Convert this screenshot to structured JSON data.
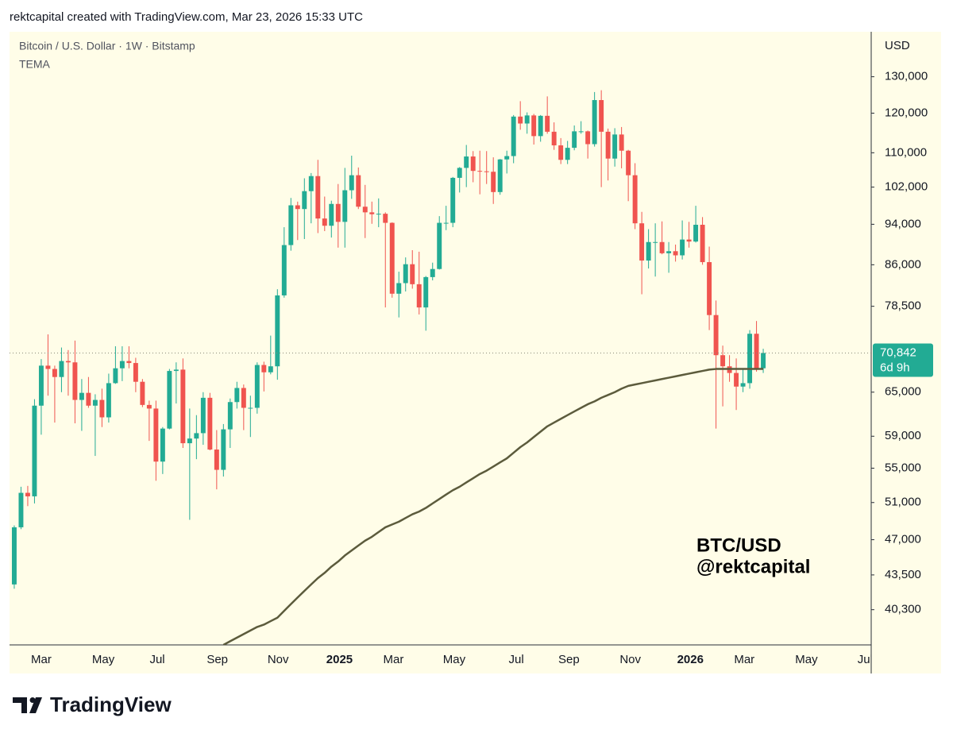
{
  "header": {
    "caption": "rektcapital created with TradingView.com, Mar 23, 2026 15:33 UTC"
  },
  "chart_data": {
    "type": "candlestick",
    "title": "Bitcoin / U.S. Dollar · 1W · Bitstamp",
    "currency": "USD",
    "log_scale": true,
    "up_color": "#22ab94",
    "down_color": "#f0544f",
    "categories": [
      null,
      null,
      null,
      null,
      null,
      null,
      null,
      null,
      null,
      null,
      null,
      null,
      null,
      null,
      null,
      null,
      null,
      null,
      null,
      null,
      null,
      null,
      null,
      null,
      null,
      null,
      null,
      null,
      null,
      null,
      null,
      null,
      null,
      null,
      null,
      null,
      null,
      null,
      null,
      null,
      null,
      null,
      null,
      null,
      null,
      null,
      null,
      null,
      null,
      null,
      null,
      null,
      null,
      null,
      null,
      null,
      null,
      null,
      null,
      null,
      null,
      null,
      null,
      null,
      null,
      null,
      null,
      null,
      null,
      null,
      null,
      null,
      null,
      null,
      null,
      null,
      null,
      null,
      null,
      null,
      null,
      null,
      null,
      null,
      null,
      null,
      null,
      null,
      null,
      null,
      null,
      null,
      null,
      null,
      null,
      null,
      null,
      null,
      null,
      null,
      null,
      null,
      null,
      null,
      null,
      null,
      null,
      null,
      null,
      null,
      null,
      null
    ],
    "open": [
      42600,
      48300,
      52100,
      51700,
      63100,
      68900,
      68400,
      67200,
      69600,
      69400,
      63900,
      64900,
      63100,
      63900,
      61500,
      66300,
      68500,
      69600,
      69300,
      66500,
      63200,
      62700,
      55800,
      60000,
      68100,
      68300,
      58100,
      58700,
      59400,
      64200,
      57300,
      54800,
      59900,
      63600,
      65600,
      62800,
      62800,
      69000,
      67900,
      68800,
      80400,
      89800,
      98000,
      97200,
      101100,
      104500,
      95200,
      93700,
      98300,
      94500,
      101300,
      104700,
      97700,
      96500,
      96100,
      96200,
      94300,
      80700,
      82600,
      86100,
      82400,
      78300,
      83700,
      85200,
      94300,
      94300,
      104100,
      106400,
      109100,
      105700,
      105600,
      105500,
      100900,
      108400,
      109200,
      119100,
      117300,
      119400,
      114100,
      119300,
      115200,
      111800,
      108300,
      111200,
      115300,
      115300,
      112100,
      123500,
      115200,
      108600,
      114500,
      110500,
      104700,
      94200,
      86800,
      90400,
      90400,
      88200,
      88600,
      87800,
      90900,
      90500,
      93900,
      86500,
      77000,
      70500,
      68800,
      67800,
      65800,
      66300,
      73900,
      68500
    ],
    "high": [
      48500,
      52800,
      52900,
      64000,
      69900,
      73800,
      68900,
      71700,
      71300,
      72800,
      66900,
      67200,
      64700,
      65500,
      67700,
      71900,
      71900,
      71900,
      70100,
      66900,
      63800,
      63800,
      60200,
      68400,
      69400,
      70000,
      62700,
      61800,
      65000,
      64900,
      59800,
      60600,
      64100,
      66500,
      66100,
      64500,
      69400,
      69500,
      73600,
      81500,
      93400,
      99600,
      98800,
      104000,
      105200,
      108300,
      99900,
      99000,
      102700,
      106400,
      109300,
      106500,
      102500,
      98800,
      99500,
      96500,
      94400,
      84700,
      87400,
      88800,
      88500,
      83900,
      86400,
      95700,
      97900,
      104300,
      106600,
      111900,
      110400,
      110500,
      110400,
      108900,
      108500,
      110500,
      119500,
      123200,
      120200,
      119800,
      119500,
      124500,
      117600,
      113600,
      112900,
      116800,
      117900,
      115500,
      125700,
      126200,
      116000,
      116100,
      116400,
      110700,
      107500,
      96600,
      93000,
      94200,
      94600,
      90400,
      89900,
      94800,
      94500,
      97900,
      95500,
      89500,
      79500,
      72000,
      70500,
      70000,
      68500,
      74500,
      76000,
      71500
    ],
    "low": [
      42200,
      48100,
      50600,
      50900,
      59200,
      64500,
      60800,
      65000,
      64500,
      60700,
      59700,
      62800,
      56500,
      60200,
      60800,
      66200,
      66600,
      68500,
      65000,
      62900,
      58400,
      53500,
      54300,
      59900,
      63400,
      57500,
      49100,
      56100,
      57900,
      57200,
      52500,
      54000,
      57500,
      62700,
      59800,
      58900,
      62000,
      65100,
      67600,
      66800,
      80000,
      88700,
      90800,
      91000,
      94200,
      92200,
      92600,
      91300,
      89300,
      89300,
      99400,
      97200,
      91200,
      94100,
      93400,
      78300,
      80000,
      76600,
      81100,
      81600,
      77100,
      74400,
      83100,
      85100,
      92800,
      93400,
      100800,
      102000,
      103100,
      100400,
      102700,
      98300,
      100300,
      105100,
      107500,
      115700,
      114700,
      112000,
      112700,
      114700,
      110700,
      107300,
      107300,
      110600,
      114700,
      108600,
      111500,
      102000,
      103500,
      106700,
      106300,
      98900,
      93000,
      80600,
      85300,
      83800,
      88000,
      84500,
      86600,
      87000,
      89300,
      90300,
      86000,
      74500,
      60000,
      63000,
      66500,
      62500,
      65000,
      65500,
      68000,
      67800
    ],
    "close": [
      48300,
      52100,
      51700,
      63100,
      68900,
      68400,
      67200,
      69600,
      69400,
      63900,
      64900,
      63100,
      63900,
      61500,
      66300,
      68500,
      69600,
      69300,
      66500,
      63200,
      62700,
      55800,
      60000,
      68100,
      68300,
      58100,
      58700,
      59400,
      64200,
      57300,
      54800,
      59900,
      63600,
      65600,
      62800,
      62800,
      69000,
      67900,
      68800,
      80400,
      89800,
      98000,
      97200,
      101100,
      104500,
      95200,
      93700,
      98300,
      94500,
      101300,
      104700,
      97700,
      96500,
      96100,
      96200,
      94300,
      80700,
      82600,
      86100,
      82400,
      78300,
      83700,
      85200,
      94300,
      94300,
      104100,
      106400,
      109100,
      105700,
      105600,
      105500,
      100900,
      108400,
      109200,
      119100,
      117300,
      119400,
      114100,
      119300,
      115200,
      111800,
      108300,
      111200,
      115300,
      115300,
      112100,
      123500,
      115200,
      108600,
      114500,
      110500,
      104700,
      94200,
      86800,
      90400,
      90400,
      88200,
      88600,
      87800,
      90900,
      90500,
      93900,
      86500,
      77000,
      70500,
      68800,
      67800,
      65800,
      66300,
      73900,
      68500,
      70842
    ],
    "series": [
      {
        "name": "TEMA",
        "color": "#5c5b3c",
        "values": [
          null,
          null,
          null,
          null,
          null,
          null,
          null,
          null,
          null,
          null,
          null,
          null,
          null,
          null,
          null,
          null,
          null,
          null,
          null,
          null,
          null,
          null,
          null,
          null,
          null,
          null,
          null,
          null,
          null,
          null,
          null,
          37300,
          37600,
          37900,
          38200,
          38500,
          38800,
          39000,
          39300,
          39600,
          40200,
          40800,
          41400,
          42000,
          42600,
          43200,
          43700,
          44300,
          44800,
          45400,
          45900,
          46400,
          46900,
          47300,
          47800,
          48300,
          48600,
          48900,
          49300,
          49700,
          50000,
          50400,
          50900,
          51400,
          51900,
          52400,
          52800,
          53300,
          53800,
          54300,
          54700,
          55200,
          55700,
          56200,
          56900,
          57600,
          58200,
          58900,
          59600,
          60300,
          60800,
          61300,
          61800,
          62300,
          62800,
          63300,
          63700,
          64200,
          64600,
          65000,
          65500,
          65900,
          66100,
          66300,
          66500,
          66700,
          66900,
          67100,
          67300,
          67500,
          67700,
          67900,
          68100,
          68300,
          68400,
          68400,
          68400,
          68400,
          68400,
          68400,
          68400,
          68400
        ]
      }
    ],
    "xlim": [
      -0.7,
      127
    ],
    "xticks": [
      {
        "value": 4,
        "label": "Mar"
      },
      {
        "value": 13.2,
        "label": "May"
      },
      {
        "value": 21.2,
        "label": "Jul"
      },
      {
        "value": 30.1,
        "label": "Sep"
      },
      {
        "value": 39.1,
        "label": "Nov"
      },
      {
        "value": 48.2,
        "label": "2025"
      },
      {
        "value": 56.2,
        "label": "Mar"
      },
      {
        "value": 65.2,
        "label": "May"
      },
      {
        "value": 74.4,
        "label": "Jul"
      },
      {
        "value": 82.2,
        "label": "Sep"
      },
      {
        "value": 91.3,
        "label": "Nov"
      },
      {
        "value": 100.2,
        "label": "2026"
      },
      {
        "value": 108.2,
        "label": "Mar"
      },
      {
        "value": 117.4,
        "label": "May"
      },
      {
        "value": 126.1,
        "label": "Jul"
      }
    ],
    "ylim": [
      37300,
      143500
    ],
    "yticks": [
      {
        "value": 40300,
        "label": "40,300"
      },
      {
        "value": 43500,
        "label": "43,500"
      },
      {
        "value": 47000,
        "label": "47,000"
      },
      {
        "value": 51000,
        "label": "51,000"
      },
      {
        "value": 55000,
        "label": "55,000"
      },
      {
        "value": 59000,
        "label": "59,000"
      },
      {
        "value": 65000,
        "label": "65,000"
      },
      {
        "value": 78500,
        "label": "78,500"
      },
      {
        "value": 86000,
        "label": "86,000"
      },
      {
        "value": 94000,
        "label": "94,000"
      },
      {
        "value": 102000,
        "label": "102,000"
      },
      {
        "value": 110000,
        "label": "110,000"
      },
      {
        "value": 120000,
        "label": "120,000"
      },
      {
        "value": 130000,
        "label": "130,000"
      }
    ],
    "last_price": {
      "value": 70842,
      "label": "70,842"
    },
    "countdown": "6d 9h",
    "annotations": [
      "BTC/USD",
      "@rektcapital"
    ]
  },
  "footer": {
    "brand": "TradingView"
  }
}
